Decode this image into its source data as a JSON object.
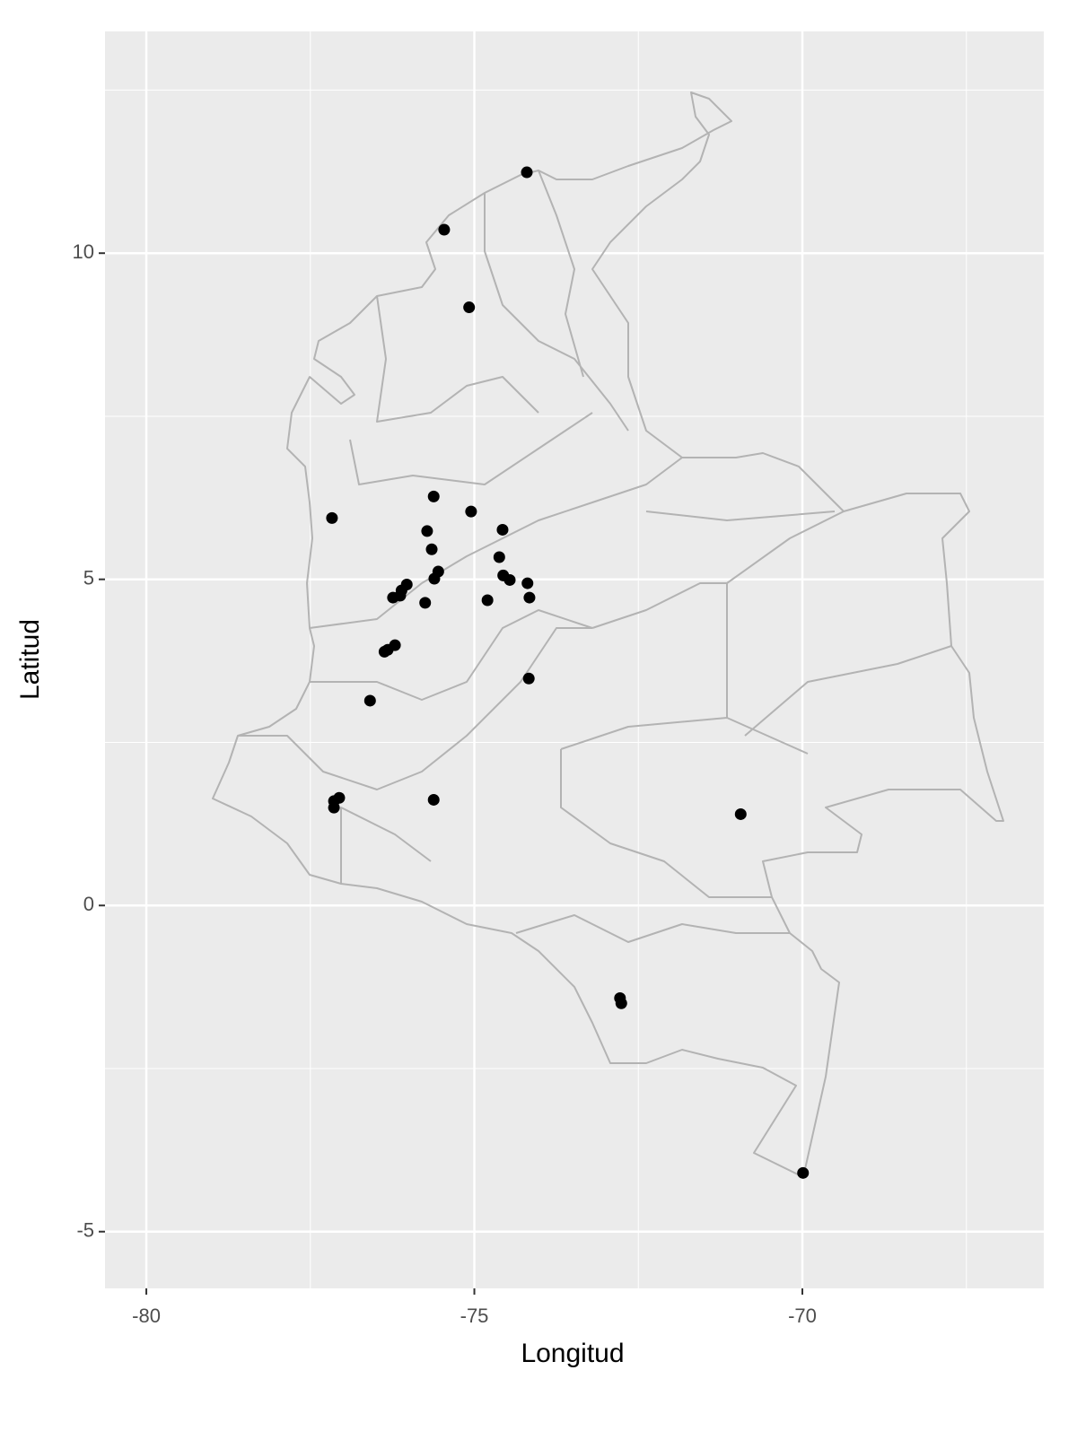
{
  "chart_data": {
    "type": "scatter",
    "x_label": "Longitud",
    "y_label": "Latitud",
    "x": [
      -74.2,
      -75.46,
      -75.08,
      -77.17,
      -75.62,
      -75.05,
      -75.72,
      -74.57,
      -75.65,
      -74.62,
      -75.55,
      -75.61,
      -74.56,
      -74.46,
      -74.19,
      -74.16,
      -74.8,
      -75.75,
      -76.03,
      -76.11,
      -76.13,
      -76.24,
      -76.21,
      -76.32,
      -76.37,
      -76.59,
      -74.17,
      -75.62,
      -77.06,
      -77.14,
      -77.14,
      -70.94,
      -72.78,
      -72.76,
      -69.99
    ],
    "values": [
      11.24,
      10.36,
      9.17,
      5.94,
      6.27,
      6.04,
      5.74,
      5.76,
      5.46,
      5.34,
      5.12,
      5.01,
      5.06,
      4.99,
      4.94,
      4.72,
      4.68,
      4.64,
      4.92,
      4.83,
      4.75,
      4.72,
      3.99,
      3.92,
      3.89,
      3.14,
      3.48,
      1.62,
      1.65,
      1.6,
      1.5,
      1.4,
      -1.42,
      -1.5,
      -4.1
    ],
    "color": "#000000",
    "xlim": [
      -80.63,
      -66.32
    ],
    "ylim": [
      -5.87,
      13.4
    ],
    "xticks": [
      -80,
      -75,
      -70
    ],
    "yticks": [
      -5,
      0,
      5,
      10
    ],
    "grid": true
  }
}
